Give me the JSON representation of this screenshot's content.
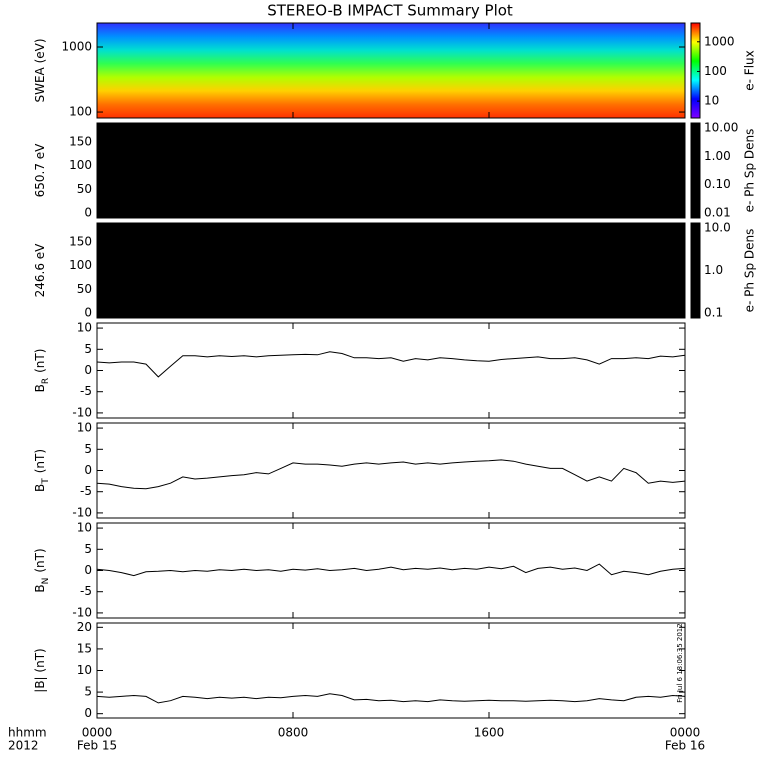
{
  "chart_data": [
    {
      "type": "heatmap",
      "title": "STEREO-B IMPACT Summary Plot",
      "ylabel": "SWEA (eV)",
      "ylog": true,
      "ylim": [
        81,
        2340
      ],
      "yticks": [
        100,
        1000
      ],
      "image_colors": [
        "#3030ff",
        "#0090ff",
        "#00e0d0",
        "#30ff50",
        "#b0ff00",
        "#ffd000",
        "#ff7000",
        "#ff3000"
      ],
      "colorbar_label": "e- Flux",
      "colorbar_log": true,
      "clim": [
        2.7,
        4300
      ],
      "cticks": [
        10,
        100,
        1000
      ],
      "colorbar_colors": [
        "#8000ff",
        "#0000ff",
        "#00ffff",
        "#00ff00",
        "#ffff00",
        "#ff0000"
      ]
    },
    {
      "type": "heatmap",
      "ylabel": "650.7 eV",
      "ylog": false,
      "ylim": [
        -10.6,
        190
      ],
      "yticks": [
        0,
        50,
        100,
        150
      ],
      "image_colors": [
        "#000000"
      ],
      "colorbar_label": "e- Ph Sp Dens",
      "colorbar_log": true,
      "clim": [
        0.0067,
        15
      ],
      "cticks": [
        {
          "value": 0.01,
          "label": "0.01"
        },
        {
          "value": 0.1,
          "label": "0.10"
        },
        {
          "value": 1,
          "label": "1.00"
        },
        {
          "value": 10,
          "label": "10.00"
        }
      ],
      "colorbar_colors": [
        "#000000",
        "#000000"
      ]
    },
    {
      "type": "heatmap",
      "ylabel": "246.6 eV",
      "ylog": false,
      "ylim": [
        -10.6,
        190
      ],
      "yticks": [
        0,
        50,
        100,
        150
      ],
      "image_colors": [
        "#000000"
      ],
      "colorbar_label": "e- Ph Sp Dens",
      "colorbar_log": true,
      "clim": [
        0.076,
        13.1
      ],
      "cticks": [
        {
          "value": 0.1,
          "label": "0.1"
        },
        {
          "value": 1,
          "label": "1.0"
        },
        {
          "value": 10,
          "label": "10.0"
        }
      ],
      "colorbar_colors": [
        "#000000",
        "#000000"
      ]
    },
    {
      "type": "line",
      "ylabel": "B",
      "ylabel_sub": "R",
      "ylabel_unit": "(nT)",
      "color": "#000000",
      "xlim": [
        0,
        24
      ],
      "ylim": [
        -11.2,
        11.2
      ],
      "yticks": [
        -10,
        -5,
        0,
        5,
        10
      ],
      "x": [
        0,
        0.5,
        1,
        1.5,
        2,
        2.5,
        3,
        3.5,
        4,
        4.5,
        5,
        5.5,
        6,
        6.5,
        7,
        7.5,
        8,
        8.5,
        9,
        9.5,
        10,
        10.5,
        11,
        11.5,
        12,
        12.5,
        13,
        13.5,
        14,
        14.5,
        15,
        15.5,
        16,
        16.5,
        17,
        17.5,
        18,
        18.5,
        19,
        19.5,
        20,
        20.5,
        21,
        21.5,
        22,
        22.5,
        23,
        23.5,
        24
      ],
      "values": [
        2,
        1.8,
        2,
        2,
        1.5,
        -1.5,
        1,
        3.5,
        3.5,
        3.2,
        3.5,
        3.3,
        3.5,
        3.2,
        3.5,
        3.6,
        3.7,
        3.8,
        3.7,
        4.4,
        4,
        3,
        3,
        2.8,
        3,
        2.2,
        2.8,
        2.5,
        3,
        2.8,
        2.5,
        2.3,
        2.2,
        2.6,
        2.8,
        3,
        3.2,
        2.8,
        2.8,
        3,
        2.5,
        1.5,
        2.8,
        2.8,
        3,
        2.8,
        3.4,
        3.2,
        3.6
      ]
    },
    {
      "type": "line",
      "ylabel": "B",
      "ylabel_sub": "T",
      "ylabel_unit": "(nT)",
      "color": "#000000",
      "xlim": [
        0,
        24
      ],
      "ylim": [
        -11.2,
        11.2
      ],
      "yticks": [
        -10,
        -5,
        0,
        5,
        10
      ],
      "x": [
        0,
        0.5,
        1,
        1.5,
        2,
        2.5,
        3,
        3.5,
        4,
        4.5,
        5,
        5.5,
        6,
        6.5,
        7,
        7.5,
        8,
        8.5,
        9,
        9.5,
        10,
        10.5,
        11,
        11.5,
        12,
        12.5,
        13,
        13.5,
        14,
        14.5,
        15,
        15.5,
        16,
        16.5,
        17,
        17.5,
        18,
        18.5,
        19,
        19.5,
        20,
        20.5,
        21,
        21.5,
        22,
        22.5,
        23,
        23.5,
        24
      ],
      "values": [
        -3,
        -3.2,
        -3.8,
        -4.2,
        -4.3,
        -3.8,
        -3,
        -1.5,
        -2,
        -1.8,
        -1.5,
        -1.2,
        -1,
        -0.5,
        -0.8,
        0.5,
        1.8,
        1.5,
        1.5,
        1.3,
        1,
        1.5,
        1.8,
        1.5,
        1.8,
        2,
        1.5,
        1.8,
        1.5,
        1.8,
        2,
        2.2,
        2.3,
        2.5,
        2.2,
        1.5,
        1,
        0.5,
        0.5,
        -1,
        -2.5,
        -1.5,
        -2.5,
        0.5,
        -0.5,
        -3,
        -2.5,
        -2.8,
        -2.5
      ]
    },
    {
      "type": "line",
      "ylabel": "B",
      "ylabel_sub": "N",
      "ylabel_unit": "(nT)",
      "color": "#000000",
      "xlim": [
        0,
        24
      ],
      "ylim": [
        -11.2,
        11.2
      ],
      "yticks": [
        -10,
        -5,
        0,
        5,
        10
      ],
      "x": [
        0,
        0.5,
        1,
        1.5,
        2,
        2.5,
        3,
        3.5,
        4,
        4.5,
        5,
        5.5,
        6,
        6.5,
        7,
        7.5,
        8,
        8.5,
        9,
        9.5,
        10,
        10.5,
        11,
        11.5,
        12,
        12.5,
        13,
        13.5,
        14,
        14.5,
        15,
        15.5,
        16,
        16.5,
        17,
        17.5,
        18,
        18.5,
        19,
        19.5,
        20,
        20.5,
        21,
        21.5,
        22,
        22.5,
        23,
        23.5,
        24
      ],
      "values": [
        0.3,
        0,
        -0.5,
        -1.2,
        -0.3,
        -0.2,
        0,
        -0.3,
        0,
        -0.2,
        0.2,
        0,
        0.3,
        0,
        0.2,
        -0.2,
        0.3,
        0.1,
        0.4,
        0,
        0.2,
        0.5,
        0,
        0.3,
        0.8,
        0.2,
        0.5,
        0.3,
        0.6,
        0.2,
        0.5,
        0.3,
        0.8,
        0.4,
        1,
        -0.5,
        0.5,
        0.8,
        0.3,
        0.6,
        0,
        1.5,
        -1,
        -0.2,
        -0.5,
        -1,
        -0.2,
        0.3,
        0.5
      ]
    },
    {
      "type": "line",
      "ylabel": "|B| (nT)",
      "color": "#000000",
      "timestamp": "Fri Jul  6 18:06:35 2012",
      "xlim": [
        0,
        24
      ],
      "ylim": [
        -1,
        21
      ],
      "yticks": [
        0,
        5,
        10,
        15,
        20
      ],
      "x": [
        0,
        0.5,
        1,
        1.5,
        2,
        2.5,
        3,
        3.5,
        4,
        4.5,
        5,
        5.5,
        6,
        6.5,
        7,
        7.5,
        8,
        8.5,
        9,
        9.5,
        10,
        10.5,
        11,
        11.5,
        12,
        12.5,
        13,
        13.5,
        14,
        14.5,
        15,
        15.5,
        16,
        16.5,
        17,
        17.5,
        18,
        18.5,
        19,
        19.5,
        20,
        20.5,
        21,
        21.5,
        22,
        22.5,
        23,
        23.5,
        24
      ],
      "values": [
        4,
        3.8,
        4,
        4.2,
        4,
        2.5,
        3,
        4,
        3.8,
        3.5,
        3.8,
        3.6,
        3.8,
        3.5,
        3.8,
        3.7,
        4,
        4.2,
        4,
        4.6,
        4.2,
        3.2,
        3.3,
        3,
        3.1,
        2.8,
        3,
        2.8,
        3.2,
        3,
        2.9,
        3,
        3.1,
        3,
        3,
        2.9,
        3,
        3.1,
        3,
        2.8,
        3,
        3.5,
        3.2,
        3,
        3.8,
        4,
        3.8,
        4.2,
        4
      ],
      "xticks": [
        {
          "value": 0,
          "label": "0000"
        },
        {
          "value": 8,
          "label": "0800"
        },
        {
          "value": 16,
          "label": "1600"
        },
        {
          "value": 24,
          "label": "0000"
        }
      ],
      "xtick_sublabels": [
        "Feb 15",
        null,
        null,
        "Feb 16"
      ],
      "xlabel_lines": [
        "hhmm",
        "2012"
      ]
    }
  ]
}
